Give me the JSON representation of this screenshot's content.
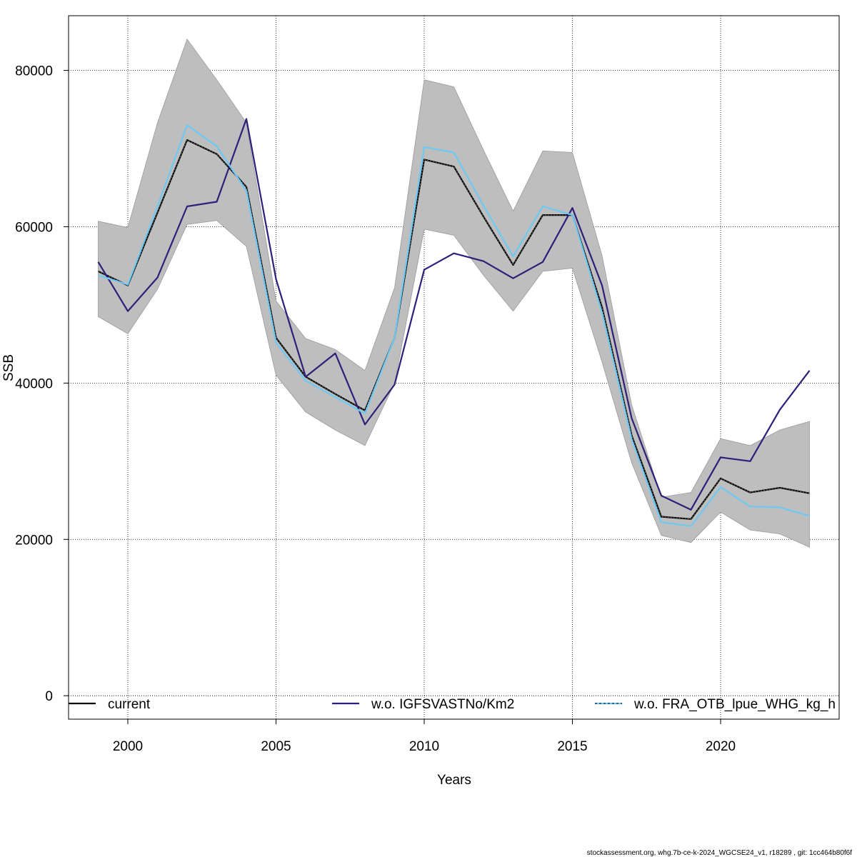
{
  "chart_data": {
    "type": "line",
    "title": "",
    "xlabel": "Years",
    "ylabel": "SSB",
    "xlim": [
      1998,
      2024
    ],
    "ylim": [
      -3000,
      87000
    ],
    "xticks": [
      2000,
      2005,
      2010,
      2015,
      2020
    ],
    "yticks": [
      0,
      20000,
      40000,
      60000,
      80000
    ],
    "x": [
      1999,
      2000,
      2001,
      2002,
      2003,
      2004,
      2005,
      2006,
      2007,
      2008,
      2009,
      2010,
      2011,
      2012,
      2013,
      2014,
      2015,
      2016,
      2017,
      2018,
      2019,
      2020,
      2021,
      2022,
      2023
    ],
    "band": {
      "name": "confidence interval",
      "color": "#bebebe",
      "lower": [
        48500,
        46300,
        52000,
        60300,
        60800,
        57500,
        41000,
        36300,
        34000,
        32000,
        40000,
        59700,
        58900,
        53800,
        49200,
        54300,
        54700,
        42700,
        29800,
        20500,
        19600,
        23500,
        21200,
        20700,
        19000
      ],
      "upper": [
        60700,
        59900,
        73300,
        84000,
        78800,
        73300,
        50500,
        45700,
        44300,
        41600,
        52200,
        78800,
        77900,
        69800,
        62000,
        69700,
        69500,
        56300,
        37200,
        25400,
        26000,
        32900,
        32000,
        34000,
        35100
      ]
    },
    "series": [
      {
        "name": "current",
        "color": "#000000",
        "dash": "solid",
        "values": [
          54300,
          52500,
          61800,
          71100,
          69300,
          65100,
          45800,
          40800,
          38600,
          36500,
          45800,
          68600,
          67700,
          61300,
          55100,
          61500,
          61500,
          49700,
          33300,
          22900,
          22600,
          27800,
          26000,
          26600,
          25900
        ]
      },
      {
        "name": "w.o. IGFSVASTNo/Km2",
        "color": "#2e1f7a",
        "dash": "solid",
        "values": [
          55500,
          49200,
          53500,
          62600,
          63200,
          73800,
          53300,
          40800,
          43800,
          34700,
          39800,
          54500,
          56600,
          55600,
          53400,
          55500,
          62400,
          52500,
          35500,
          25600,
          23800,
          30500,
          30000,
          36600,
          41600
        ]
      },
      {
        "name": "w.o. FRA_OTB_lpue_WHG_kg_h",
        "color": "#6ec9f2",
        "dash": "solid",
        "values": [
          53800,
          52600,
          62600,
          73000,
          70300,
          64600,
          45200,
          40300,
          38200,
          36100,
          45800,
          70200,
          69500,
          62700,
          56200,
          62600,
          61500,
          49000,
          32800,
          22200,
          21700,
          26700,
          24200,
          24100,
          23000
        ]
      }
    ],
    "legend": {
      "position": "bottom",
      "entries": [
        "current",
        "w.o. IGFSVASTNo/Km2",
        "w.o. FRA_OTB_lpue_WHG_kg_h"
      ]
    },
    "grid": true
  },
  "footer": "stockassessment.org, whg.7b-ce-k-2024_WGCSE24_v1, r18289 , git: 1cc464b80f6f"
}
